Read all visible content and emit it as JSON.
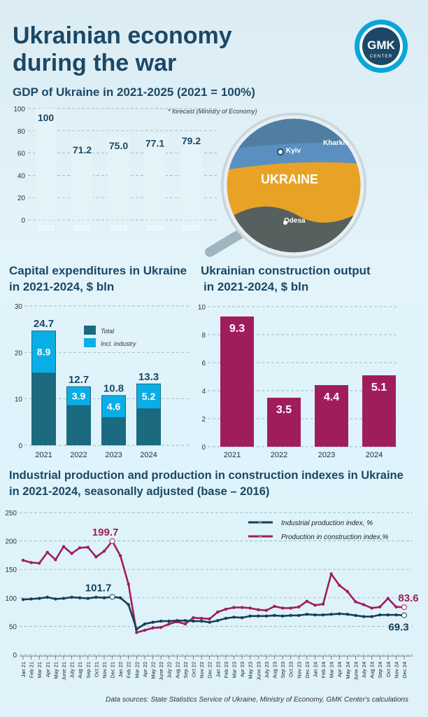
{
  "header": {
    "title_line1": "Ukrainian economy",
    "title_line2": "during the war",
    "logo_text": "GMK CENTER"
  },
  "colors": {
    "title": "#1b4866",
    "total": "#1b6a80",
    "industry": "#0aaee6",
    "construction": "#a01d5c",
    "industrial_line": "#173f56",
    "gdp_bar": "#e4f3f8"
  },
  "map": {
    "country": "UKRAINE",
    "cities": [
      "Kyiv",
      "Kharkiv",
      "Odesa"
    ]
  },
  "source": "Data sources: State Statistics Service of Ukraine, Ministry of Economy, GMK Center's calculations",
  "chart_data": [
    {
      "type": "bar",
      "title": "GDP of Ukraine in 2021-2025 (2021 = 100%)",
      "annotation": "* forecast (Ministry of Economy)",
      "categories": [
        "2021",
        "2022",
        "2023",
        "2024",
        "2025*"
      ],
      "values": [
        100,
        71.2,
        75.0,
        77.1,
        79.2
      ],
      "labels": [
        "100",
        "71.2",
        "75.0",
        "77.1",
        "79.2"
      ],
      "ylim": [
        0,
        100
      ],
      "yticks": [
        0,
        20,
        40,
        60,
        80,
        100
      ],
      "grid": true
    },
    {
      "type": "bar",
      "title": "Capital expenditures in Ukraine in 2021-2024, $ bln",
      "title_line1": "Capital expenditures in Ukraine",
      "title_line2": "in 2021-2024, $ bln",
      "categories": [
        "2021",
        "2022",
        "2023",
        "2024"
      ],
      "series": [
        {
          "name": "Total",
          "values": [
            24.7,
            12.7,
            10.8,
            13.3
          ],
          "labels": [
            "24.7",
            "12.7",
            "10.8",
            "13.3"
          ]
        },
        {
          "name": "Incl. industry",
          "values": [
            8.9,
            3.9,
            4.6,
            5.2
          ],
          "labels": [
            "8.9",
            "3.9",
            "4.6",
            "5.2"
          ]
        }
      ],
      "ylim": [
        0,
        30
      ],
      "yticks": [
        0,
        10,
        20,
        30
      ],
      "legend": "top-center",
      "grid": true
    },
    {
      "type": "bar",
      "title": "Ukrainian construction output in 2021-2024, $ bln",
      "title_line1": "Ukrainian construction output",
      "title_line2": "in 2021-2024, $ bln",
      "categories": [
        "2021",
        "2022",
        "2023",
        "2024"
      ],
      "values": [
        9.3,
        3.5,
        4.4,
        5.1
      ],
      "labels": [
        "9.3",
        "3.5",
        "4.4",
        "5.1"
      ],
      "ylim": [
        0,
        10
      ],
      "yticks": [
        0,
        2,
        4,
        6,
        8,
        10
      ],
      "grid": true
    },
    {
      "type": "line",
      "title_line1": "Industrial production and production in construction indexes in Ukraine",
      "title_line2": "in 2021-2024, seasonally adjusted (base – 2016)",
      "x": [
        "Jan 21",
        "Feb 21",
        "Mar 21",
        "Apr 21",
        "May 21",
        "June 21",
        "July 21",
        "Aug 21",
        "Sep 21",
        "Oct 21",
        "Nov 21",
        "Dec 21",
        "Jan 22",
        "Feb 22",
        "Mar 22",
        "Apr 22",
        "May 22",
        "June 22",
        "July 22",
        "Aug 22",
        "Sep 22",
        "Oct 22",
        "Nov 22",
        "Dec 22",
        "Jan 23",
        "Feb 23",
        "Mar 23",
        "Apr 23",
        "May 23",
        "June 23",
        "July 23",
        "Aug 23",
        "Sep 23",
        "Oct 23",
        "Nov 23",
        "Dec 23",
        "Jan 24",
        "Feb 24",
        "Mar 24",
        "Apr 24",
        "May 24",
        "June 24",
        "July 24",
        "Aug 24",
        "Sep 24",
        "Oct 24",
        "Nov 24",
        "Dec 24"
      ],
      "series": [
        {
          "name": "Industrial production index, %",
          "values": [
            97,
            98,
            99,
            101,
            98,
            99,
            101,
            100,
            99,
            101,
            100,
            101.7,
            100,
            88,
            45,
            54,
            57,
            59,
            59,
            60,
            60,
            59,
            59,
            57,
            60,
            64,
            66,
            65,
            68,
            68,
            68,
            69,
            68,
            69,
            69,
            71,
            70,
            70,
            71,
            72,
            71,
            69,
            67,
            67,
            70,
            70,
            70,
            69.3
          ]
        },
        {
          "name": "Production in construction index,%",
          "values": [
            166,
            162,
            161,
            180,
            167,
            190,
            178,
            188,
            189,
            172,
            182,
            199.7,
            174,
            124,
            39,
            43,
            47,
            48,
            54,
            58,
            54,
            65,
            64,
            63,
            75,
            80,
            83,
            83,
            82,
            79,
            78,
            85,
            82,
            82,
            84,
            94,
            87,
            89,
            142,
            122,
            111,
            93,
            88,
            82,
            84,
            99,
            84,
            83.6
          ]
        }
      ],
      "annotations": [
        {
          "series": "Production in construction index,%",
          "x": "Dec 21",
          "label": "199.7"
        },
        {
          "series": "Industrial production index, %",
          "x": "Dec 21",
          "label": "101.7"
        },
        {
          "series": "Production in construction index,%",
          "x": "Dec 24",
          "label": "83.6"
        },
        {
          "series": "Industrial production index, %",
          "x": "Dec 24",
          "label": "69.3"
        }
      ],
      "ylim": [
        0,
        250
      ],
      "yticks": [
        0,
        50,
        100,
        150,
        200,
        250
      ],
      "legend": "top-right",
      "grid": true
    }
  ]
}
